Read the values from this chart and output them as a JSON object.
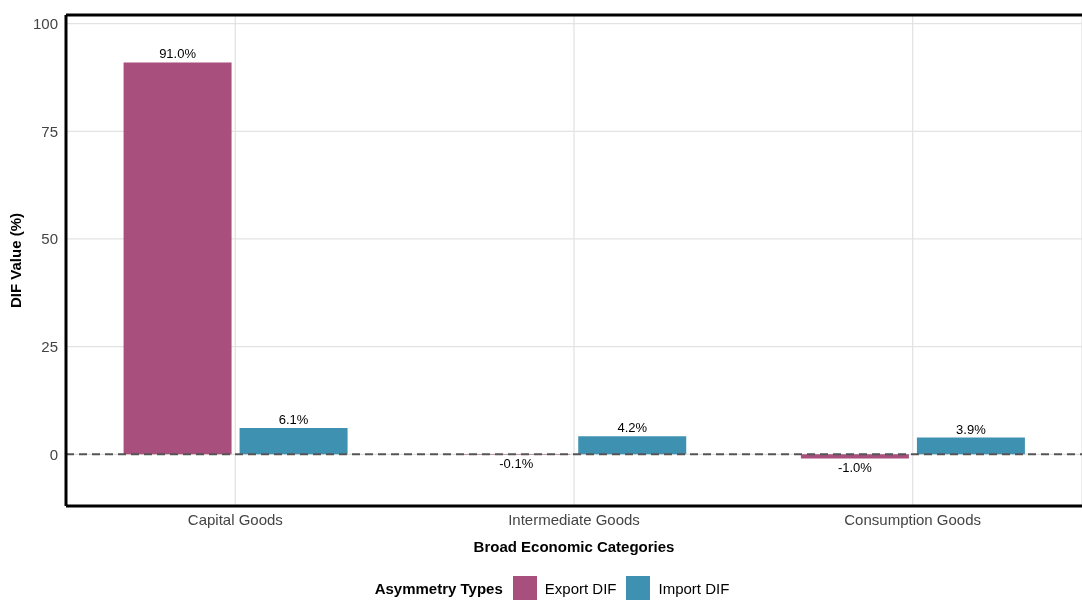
{
  "chart_data": {
    "type": "bar",
    "xlabel": "Broad Economic Categories",
    "ylabel": "DIF Value (%)",
    "legend_title": "Asymmetry Types",
    "categories": [
      "Capital Goods",
      "Intermediate Goods",
      "Consumption Goods"
    ],
    "series": [
      {
        "name": "Export DIF",
        "color": "#a94f7d",
        "values": [
          91.0,
          -0.1,
          -1.0
        ],
        "value_labels": [
          "91.0%",
          "-0.1%",
          "-1.0%"
        ]
      },
      {
        "name": "Import DIF",
        "color": "#3f91b2",
        "values": [
          6.1,
          4.2,
          3.9
        ],
        "value_labels": [
          "6.1%",
          "4.2%",
          "3.9%"
        ]
      }
    ],
    "ylim": [
      -12,
      102
    ],
    "yticks": [
      0,
      25,
      50,
      75,
      100
    ],
    "grid": true,
    "legend": "bottom",
    "ref_lines": [
      {
        "axis": "y",
        "value": 0,
        "color": "#555555",
        "line_style": "dashed"
      }
    ]
  }
}
